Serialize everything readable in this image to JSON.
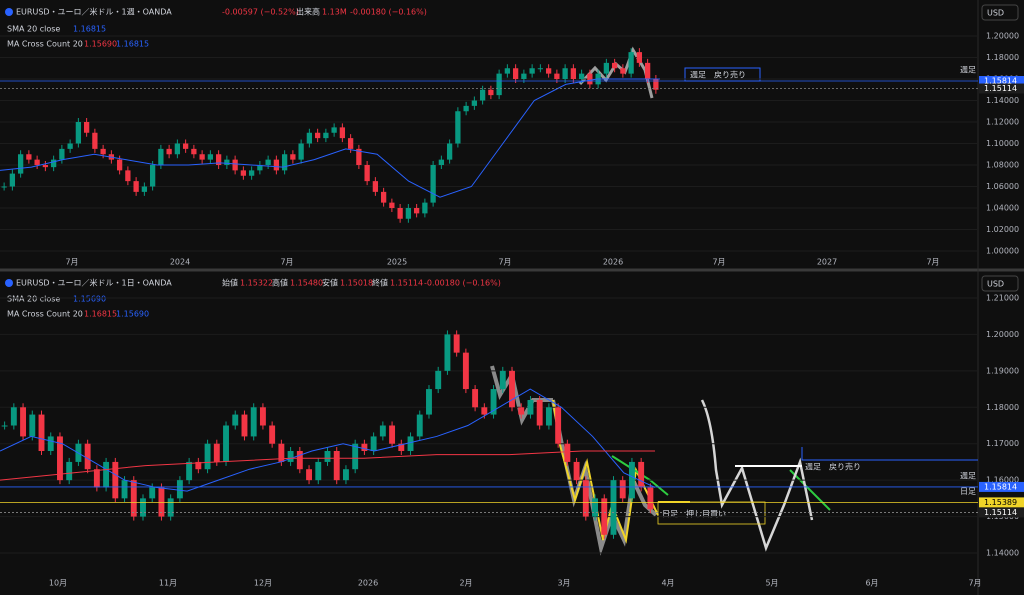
{
  "top": {
    "symbol": "EURUSD・ユーロ／米ドル・1週・OANDA",
    "change": "-0.00597 (−0.52%)",
    "volume_label": "出来高",
    "volume": "1.13M",
    "change2": "-0.00180 (−0.16%)",
    "sma_label": "SMA 20 close",
    "sma_value": "1.16815",
    "ma_label": "MA Cross Count 20",
    "ma_value1": "1.15690",
    "ma_value2": "1.16815",
    "currency": "USD",
    "ylim": [
      1.0,
      1.2
    ],
    "yticks": [
      {
        "value": 1.2,
        "label": "1.20000"
      },
      {
        "value": 1.18,
        "label": "1.18000"
      },
      {
        "value": 1.16,
        "label": "1.16000"
      },
      {
        "value": 1.14,
        "label": "1.14000"
      },
      {
        "value": 1.12,
        "label": "1.12000"
      },
      {
        "value": 1.1,
        "label": "1.10000"
      },
      {
        "value": 1.08,
        "label": "1.08000"
      },
      {
        "value": 1.06,
        "label": "1.06000"
      },
      {
        "value": 1.04,
        "label": "1.04000"
      },
      {
        "value": 1.02,
        "label": "1.02000"
      },
      {
        "value": 1.0,
        "label": "1.00000"
      }
    ],
    "xlabels": [
      "7月",
      "2024",
      "7月",
      "2025",
      "7月",
      "2026",
      "7月",
      "2027",
      "7月"
    ],
    "closes": [
      1.06,
      1.072,
      1.09,
      1.085,
      1.08,
      1.078,
      1.085,
      1.095,
      1.1,
      1.12,
      1.11,
      1.095,
      1.09,
      1.085,
      1.075,
      1.065,
      1.055,
      1.06,
      1.08,
      1.095,
      1.09,
      1.1,
      1.095,
      1.09,
      1.085,
      1.09,
      1.08,
      1.085,
      1.075,
      1.07,
      1.075,
      1.08,
      1.085,
      1.075,
      1.09,
      1.085,
      1.1,
      1.11,
      1.105,
      1.11,
      1.115,
      1.105,
      1.095,
      1.08,
      1.065,
      1.055,
      1.045,
      1.04,
      1.03,
      1.04,
      1.035,
      1.045,
      1.08,
      1.085,
      1.1,
      1.13,
      1.135,
      1.14,
      1.15,
      1.145,
      1.165,
      1.17,
      1.16,
      1.165,
      1.17,
      1.17,
      1.165,
      1.16,
      1.17,
      1.16,
      1.165,
      1.155,
      1.165,
      1.175,
      1.17,
      1.165,
      1.185,
      1.175,
      1.16,
      1.15
    ],
    "sma": [
      1.075,
      1.078,
      1.085,
      1.09,
      1.085,
      1.08,
      1.08,
      1.082,
      1.08,
      1.078,
      1.085,
      1.095,
      1.09,
      1.065,
      1.05,
      1.06,
      1.1,
      1.14,
      1.155,
      1.16,
      1.16,
      1.16
    ],
    "tags": [
      {
        "name": "週足",
        "value": 1.15814,
        "label": "1.15814"
      },
      {
        "value": 1.15114,
        "label": "1.15114"
      }
    ],
    "annotation": "週足　戻り売り"
  },
  "bottom": {
    "symbol": "EURUSD・ユーロ／米ドル・1日・OANDA",
    "open_label": "始値",
    "open": "1.15322",
    "high_label": "高値",
    "high": "1.15480",
    "low_label": "安値",
    "low": "1.15018",
    "close_label": "終値",
    "close": "1.15114",
    "change": "-0.00180 (−0.16%)",
    "sma_label": "SMA 20 close",
    "sma_value": "1.15690",
    "ma_label": "MA Cross Count 20",
    "ma_value1": "1.16815",
    "ma_value2": "1.15690",
    "currency": "USD",
    "ylim": [
      1.14,
      1.21
    ],
    "yticks": [
      {
        "value": 1.21,
        "label": "1.21000"
      },
      {
        "value": 1.2,
        "label": "1.20000"
      },
      {
        "value": 1.19,
        "label": "1.19000"
      },
      {
        "value": 1.18,
        "label": "1.18000"
      },
      {
        "value": 1.17,
        "label": "1.17000"
      },
      {
        "value": 1.16,
        "label": "1.16000"
      },
      {
        "value": 1.15,
        "label": "1.15000"
      },
      {
        "value": 1.14,
        "label": "1.14000"
      }
    ],
    "xlabels": [
      "10月",
      "11月",
      "12月",
      "2026",
      "2月",
      "3月",
      "4月",
      "5月",
      "6月",
      "7月"
    ],
    "closes": [
      1.175,
      1.18,
      1.172,
      1.178,
      1.168,
      1.172,
      1.16,
      1.165,
      1.17,
      1.163,
      1.158,
      1.165,
      1.155,
      1.16,
      1.15,
      1.155,
      1.158,
      1.15,
      1.155,
      1.16,
      1.165,
      1.163,
      1.17,
      1.165,
      1.175,
      1.178,
      1.172,
      1.18,
      1.175,
      1.17,
      1.165,
      1.168,
      1.163,
      1.16,
      1.165,
      1.168,
      1.16,
      1.163,
      1.17,
      1.168,
      1.172,
      1.175,
      1.17,
      1.168,
      1.172,
      1.178,
      1.185,
      1.19,
      1.2,
      1.195,
      1.185,
      1.18,
      1.178,
      1.185,
      1.19,
      1.18,
      1.178,
      1.182,
      1.175,
      1.18,
      1.17,
      1.165,
      1.16,
      1.15,
      1.155,
      1.145,
      1.16,
      1.155,
      1.165,
      1.158,
      1.152
    ],
    "sma": [
      1.168,
      1.172,
      1.17,
      1.165,
      1.16,
      1.158,
      1.157,
      1.16,
      1.163,
      1.165,
      1.168,
      1.17,
      1.168,
      1.17,
      1.172,
      1.175,
      1.18,
      1.185,
      1.18,
      1.172,
      1.162,
      1.158
    ],
    "long_ma": [
      1.16,
      1.162,
      1.164,
      1.165,
      1.166,
      1.166,
      1.167,
      1.167,
      1.168,
      1.168
    ],
    "tags": [
      {
        "name": "週足",
        "value": 1.15814,
        "label": "1.15814"
      },
      {
        "name": "日足",
        "value": 1.15389,
        "label": "1.15389"
      },
      {
        "value": 1.15114,
        "label": "1.15114"
      }
    ],
    "annotation_sell": "週足　戻り売り",
    "annotation_buy": "日足　押し目買い"
  }
}
